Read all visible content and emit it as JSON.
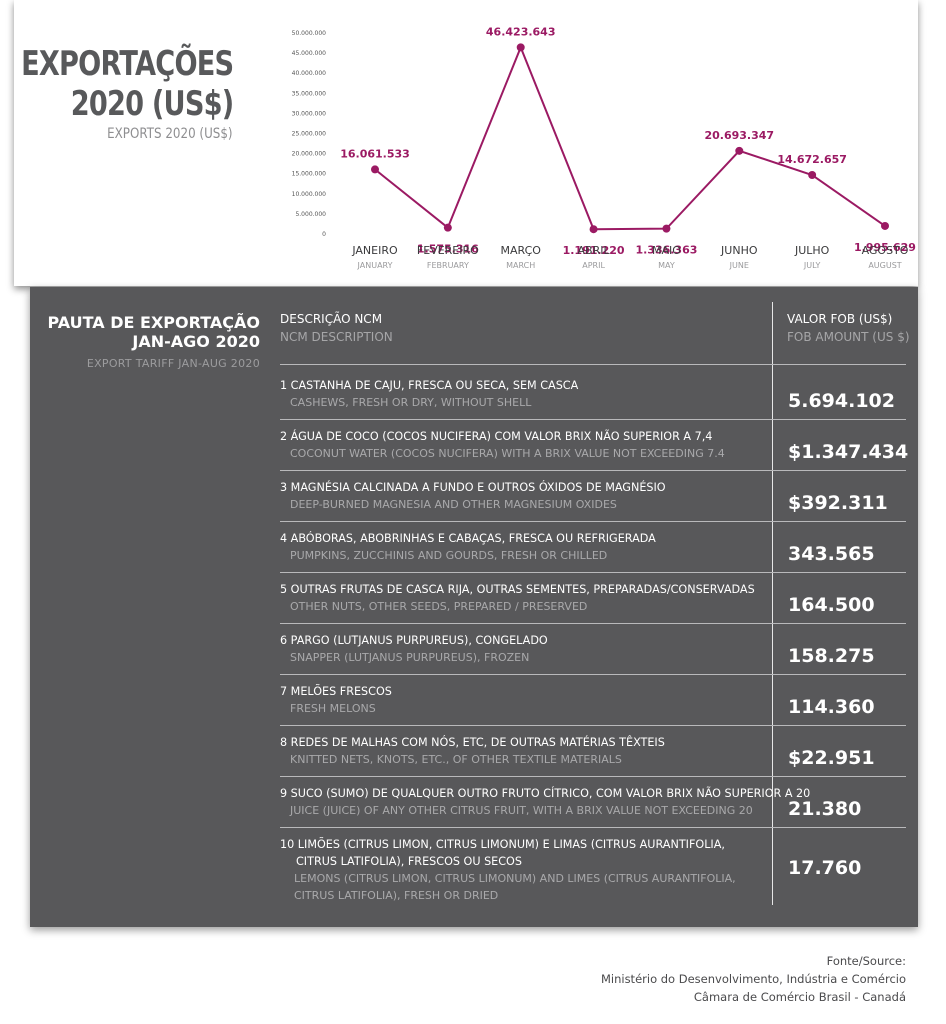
{
  "header": {
    "title_line1": "EXPORTAÇÕES",
    "title_line2": "2020 (US$)",
    "subtitle": "EXPORTS 2020 (US$)"
  },
  "chart_data": {
    "type": "line",
    "title": "EXPORTAÇÕES 2020 (US$)",
    "subtitle": "EXPORTS 2020 (US$)",
    "color": "#9b1a63",
    "ylim": [
      0,
      50000000
    ],
    "yticks": [
      "0",
      "5.000.000",
      "10.000.000",
      "15.000.000",
      "20.000.000",
      "25.000.000",
      "30.000.000",
      "35.000.000",
      "40.000.000",
      "45.000.000",
      "50.000.000"
    ],
    "categories": [
      "JANEIRO",
      "FEVEREIRO",
      "MARÇO",
      "ABRIL",
      "MAIO",
      "JUNHO",
      "JULHO",
      "AGOSTO"
    ],
    "categories_en": [
      "JANUARY",
      "FEBRUARY",
      "MARCH",
      "APRIL",
      "MAY",
      "JUNE",
      "JULY",
      "AUGUST"
    ],
    "values": [
      16061533,
      1575316,
      46423643,
      1191220,
      1336363,
      20693347,
      14672657,
      1995629
    ],
    "labels": [
      "16.061.533",
      "1.575.316",
      "46.423.643",
      "1.191.220",
      "1.336.363",
      "20.693.347",
      "14.672.657",
      "1.995.629"
    ]
  },
  "table": {
    "title_line1": "PAUTA DE EXPORTAÇÃO",
    "title_line2": "JAN-AGO 2020",
    "subtitle": "EXPORT TARIFF JAN-AUG 2020",
    "col_desc_pt": "DESCRIÇÃO NCM",
    "col_desc_en": "NCM DESCRIPTION",
    "col_value_pt": "VALOR FOB (US$)",
    "col_value_en": "FOB AMOUNT (US $)",
    "rows": [
      {
        "pt": "1 CASTANHA DE CAJU, FRESCA OU SECA, SEM CASCA",
        "en": "CASHEWS, FRESH OR DRY, WITHOUT SHELL",
        "value": "5.694.102"
      },
      {
        "pt": "2 ÁGUA DE COCO (COCOS NUCIFERA) COM VALOR BRIX NÃO SUPERIOR A 7,4",
        "en": "COCONUT WATER (COCOS NUCIFERA) WITH A BRIX VALUE NOT EXCEEDING 7.4",
        "value": "$1.347.434"
      },
      {
        "pt": "3 MAGNÉSIA CALCINADA A FUNDO E OUTROS ÓXIDOS DE MAGNÉSIO",
        "en": "DEEP-BURNED MAGNESIA AND OTHER MAGNESIUM OXIDES",
        "value": "$392.311"
      },
      {
        "pt": "4 ABÓBORAS, ABOBRINHAS E CABAÇAS, FRESCA OU REFRIGERADA",
        "en": "PUMPKINS, ZUCCHINIS AND GOURDS, FRESH OR CHILLED",
        "value": "343.565"
      },
      {
        "pt": "5 OUTRAS FRUTAS DE CASCA RIJA, OUTRAS SEMENTES, PREPARADAS/CONSERVADAS",
        "en": "OTHER NUTS, OTHER SEEDS, PREPARED / PRESERVED",
        "value": "164.500"
      },
      {
        "pt": "6 PARGO (LUTJANUS PURPUREUS), CONGELADO",
        "en": "SNAPPER (LUTJANUS PURPUREUS), FROZEN",
        "value": "158.275"
      },
      {
        "pt": "7 MELÕES FRESCOS",
        "en": "FRESH MELONS",
        "value": "114.360"
      },
      {
        "pt": "8 REDES DE MALHAS COM NÓS, ETC, DE OUTRAS MATÉRIAS TÊXTEIS",
        "en": "KNITTED NETS, KNOTS, ETC., OF OTHER TEXTILE MATERIALS",
        "value": "$22.951"
      },
      {
        "pt": "9 SUCO (SUMO) DE QUALQUER OUTRO FRUTO CÍTRICO, COM VALOR BRIX NÃO SUPERIOR A 20",
        "en": "JUICE (JUICE) OF ANY OTHER CITRUS FRUIT, WITH A BRIX VALUE NOT EXCEEDING 20",
        "value": "21.380"
      },
      {
        "pt": "10 LIMÕES (CITRUS LIMON, CITRUS LIMONUM) E LIMAS (CITRUS AURANTIFOLIA,",
        "pt2": "CITRUS LATIFOLIA), FRESCOS OU SECOS",
        "en": "LEMONS (CITRUS LIMON, CITRUS LIMONUM) AND LIMES (CITRUS AURANTIFOLIA,",
        "en2": "CITRUS LATIFOLIA), FRESH OR DRIED",
        "value": "17.760"
      }
    ]
  },
  "source": {
    "label": "Fonte/Source:",
    "line1": "Ministério do Desenvolvimento, Indústria e Comércio",
    "line2": "Câmara de Comércio Brasil - Canadá"
  }
}
